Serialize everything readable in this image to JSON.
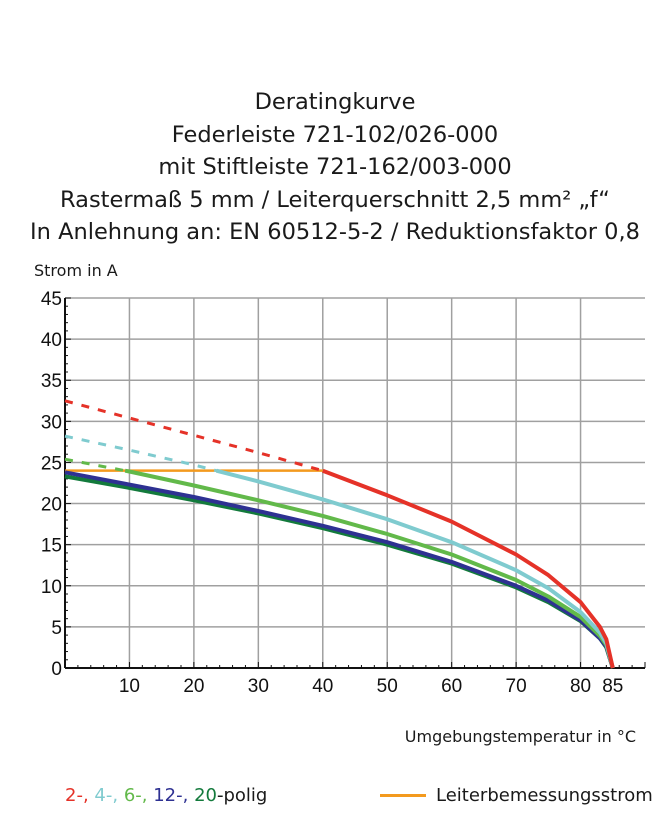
{
  "chart_data": {
    "type": "line",
    "title_lines": [
      "Deratingkurve",
      "Federleiste 721-102/026-000",
      "mit Stiftleiste 721-162/003-000",
      "Rastermaß 5 mm / Leiterquerschnitt 2,5 mm² „f“",
      "In Anlehnung an: EN 60512-5-2 / Reduktionsfaktor 0,8"
    ],
    "ylabel": "Strom in A",
    "xlabel": "Umgebungstemperatur in  °C",
    "xlim": [
      0,
      90
    ],
    "ylim": [
      0,
      45
    ],
    "x_ticks": [
      10,
      20,
      30,
      40,
      50,
      60,
      70,
      80,
      85
    ],
    "y_ticks": [
      0,
      5,
      10,
      15,
      20,
      25,
      30,
      35,
      40,
      45
    ],
    "grid": true,
    "x": [
      0,
      10,
      20,
      30,
      40,
      50,
      60,
      70,
      75,
      80,
      83,
      84,
      85
    ],
    "dashed_above": 24,
    "series": [
      {
        "name": "2-",
        "color": "#e53228",
        "values": [
          32.5,
          30.4,
          28.3,
          26.2,
          24.0,
          21.0,
          17.8,
          13.8,
          11.3,
          8.0,
          5.0,
          3.5,
          0
        ]
      },
      {
        "name": "4-",
        "color": "#7fcbcf",
        "values": [
          28.2,
          26.5,
          24.7,
          22.7,
          20.5,
          18.1,
          15.3,
          11.9,
          9.7,
          6.8,
          4.3,
          3.0,
          0
        ]
      },
      {
        "name": "6-",
        "color": "#62b94a",
        "values": [
          25.4,
          23.9,
          22.2,
          20.4,
          18.5,
          16.3,
          13.8,
          10.7,
          8.7,
          6.2,
          3.9,
          2.8,
          0
        ]
      },
      {
        "name": "12-",
        "color": "#2e3192",
        "values": [
          23.8,
          22.3,
          20.8,
          19.1,
          17.3,
          15.3,
          12.9,
          10.0,
          8.2,
          5.8,
          3.6,
          2.6,
          0
        ]
      },
      {
        "name": "20-",
        "color": "#137a3c",
        "values": [
          23.3,
          21.9,
          20.4,
          18.8,
          17.0,
          15.0,
          12.7,
          9.8,
          8.0,
          5.7,
          3.6,
          2.5,
          0
        ]
      }
    ],
    "rated_current": {
      "name": "Leiterbemessungsstrom",
      "color": "#f39a1e",
      "value": 24,
      "x_range": [
        0,
        40
      ]
    },
    "legend": {
      "suffix": "-polig",
      "separator": ", "
    }
  }
}
